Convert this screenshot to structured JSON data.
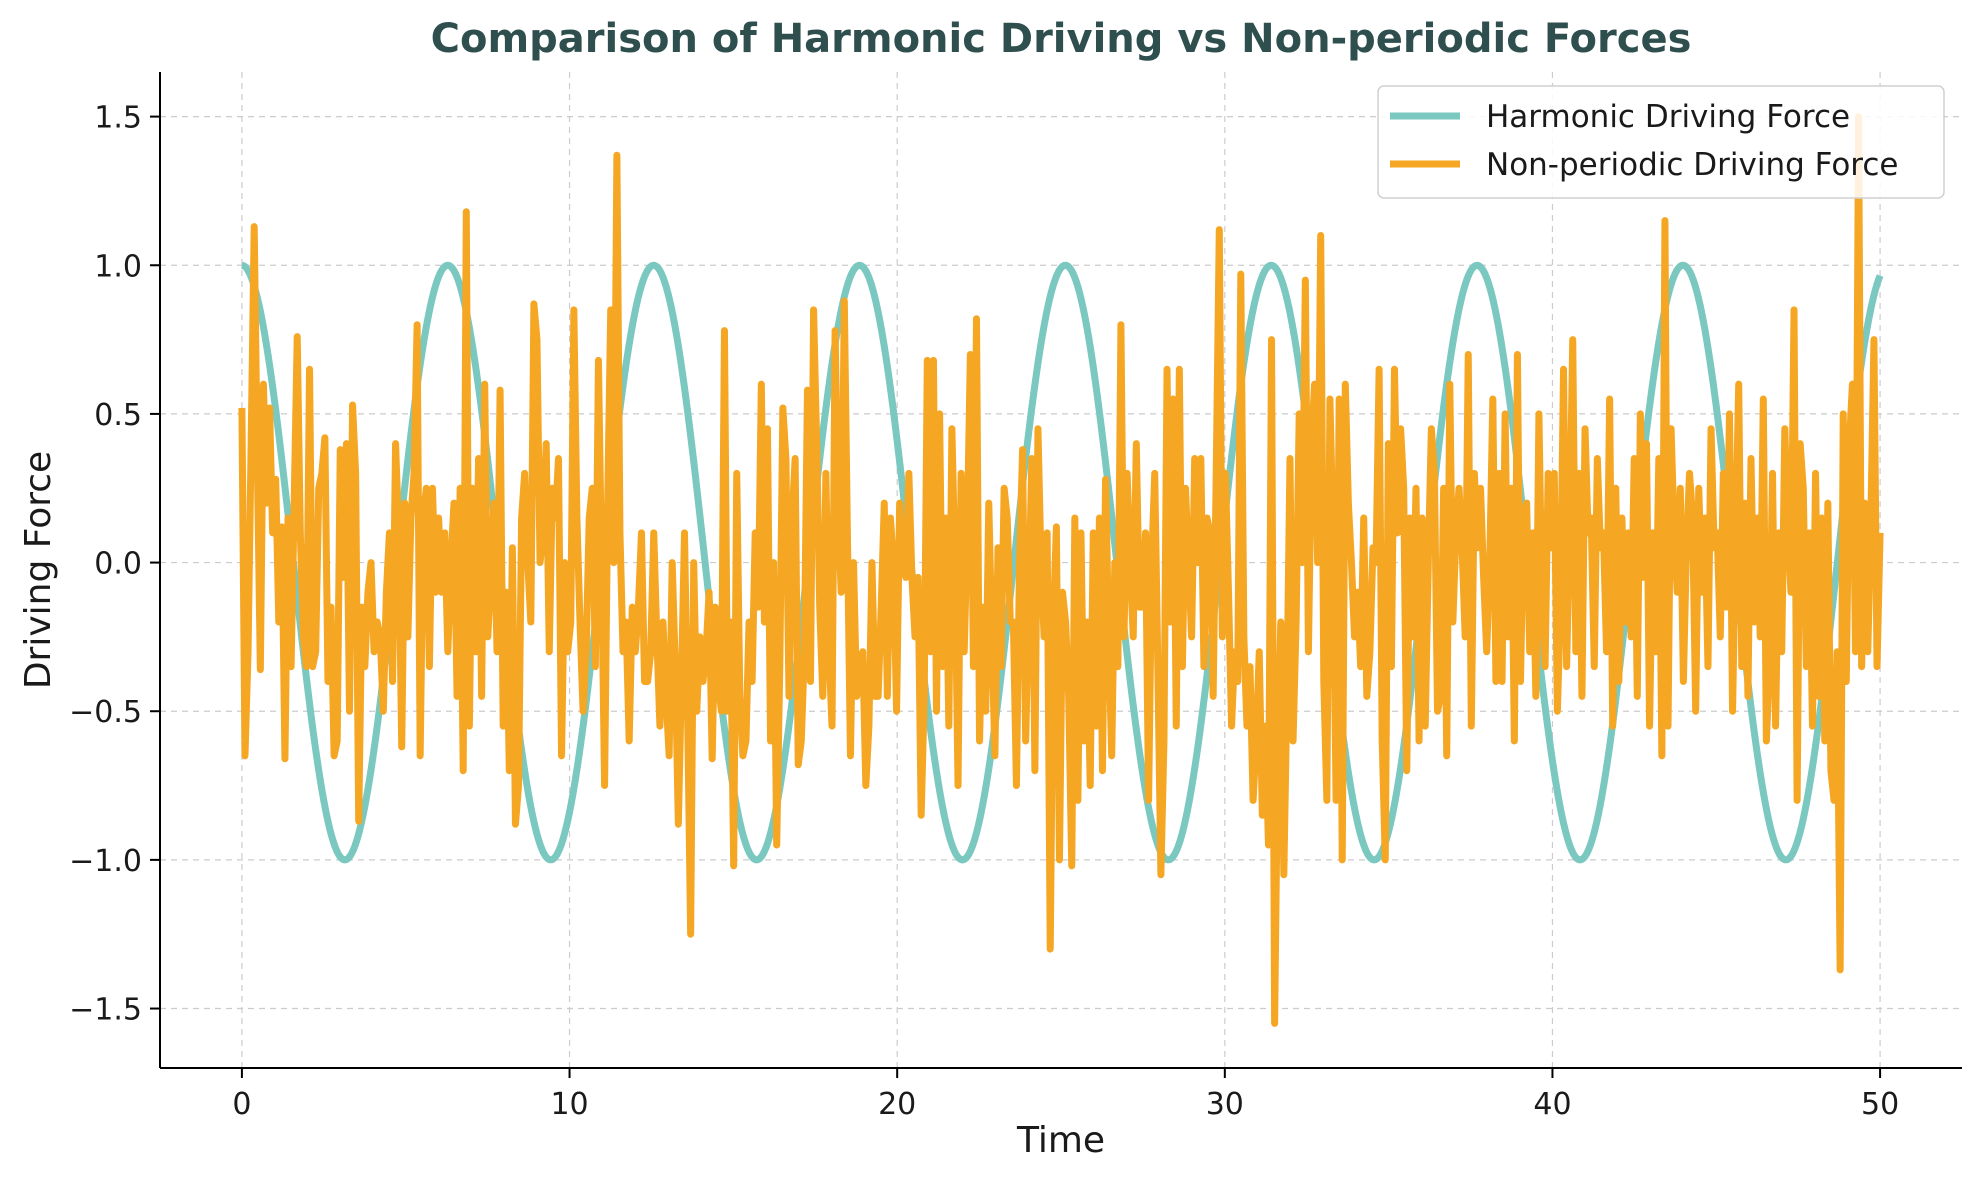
{
  "chart_data": {
    "type": "line",
    "title": "Comparison of Harmonic Driving vs Non-periodic Forces",
    "xlabel": "Time",
    "ylabel": "Driving Force",
    "xlim": [
      -2.5,
      52.5
    ],
    "ylim": [
      -1.7,
      1.65
    ],
    "xticks": [
      0,
      10,
      20,
      30,
      40,
      50
    ],
    "yticks": [
      -1.5,
      -1.0,
      -0.5,
      0.0,
      0.5,
      1.0,
      1.5
    ],
    "xtick_labels": [
      "0",
      "10",
      "20",
      "30",
      "40",
      "50"
    ],
    "ytick_labels": [
      "−1.5",
      "−1.0",
      "−0.5",
      "0.0",
      "0.5",
      "1.0",
      "1.5"
    ],
    "grid": true,
    "legend_position": "top-right",
    "series": [
      {
        "name": "Harmonic Driving Force",
        "color": "#7ac8bf",
        "formula": "cos(t)",
        "x_range": [
          0,
          50
        ]
      },
      {
        "name": "Non-periodic Driving Force",
        "color": "#f5a623",
        "x_range": [
          0,
          50
        ],
        "y": [
          0.52,
          -0.65,
          -0.3,
          0.4,
          1.13,
          0.35,
          -0.36,
          0.6,
          0.2,
          0.52,
          0.1,
          0.28,
          -0.2,
          0.12,
          -0.66,
          0.15,
          -0.35,
          0.2,
          0.76,
          0.1,
          -0.25,
          -0.35,
          0.65,
          -0.35,
          -0.3,
          0.25,
          0.3,
          0.42,
          -0.4,
          -0.15,
          -0.65,
          -0.6,
          0.38,
          -0.05,
          0.4,
          -0.5,
          0.53,
          0.3,
          -0.87,
          -0.15,
          -0.35,
          -0.1,
          0.0,
          -0.3,
          -0.2,
          -0.25,
          -0.5,
          -0.1,
          0.1,
          -0.4,
          0.4,
          0.1,
          -0.62,
          0.2,
          -0.25,
          0.15,
          0.3,
          0.8,
          -0.65,
          0.15,
          0.25,
          -0.35,
          0.25,
          -0.1,
          0.15,
          -0.1,
          0.1,
          -0.3,
          0.0,
          0.2,
          -0.45,
          0.25,
          -0.7,
          1.18,
          -0.55,
          0.25,
          -0.3,
          0.35,
          -0.45,
          0.6,
          -0.25,
          -0.05,
          0.2,
          -0.3,
          0.58,
          -0.55,
          -0.1,
          -0.7,
          0.05,
          -0.88,
          -0.75,
          0.15,
          0.3,
          0.0,
          -0.2,
          0.87,
          0.75,
          0.0,
          0.1,
          0.4,
          -0.3,
          0.25,
          0.15,
          0.35,
          -0.65,
          0.0,
          -0.3,
          -0.2,
          0.85,
          0.15,
          -0.2,
          -0.5,
          -0.3,
          0.15,
          0.25,
          -0.35,
          0.68,
          0.0,
          -0.75,
          0.2,
          0.85,
          0.0,
          1.37,
          0.1,
          -0.3,
          -0.2,
          -0.6,
          -0.15,
          -0.3,
          -0.15,
          0.1,
          -0.4,
          -0.4,
          -0.3,
          0.1,
          -0.25,
          -0.55,
          -0.2,
          -0.45,
          -0.65,
          0.0,
          -0.35,
          -0.88,
          -0.4,
          0.1,
          -0.5,
          -1.25,
          0.0,
          -0.5,
          -0.25,
          -0.4,
          -0.3,
          -0.1,
          -0.66,
          -0.15,
          -0.4,
          -0.5,
          0.78,
          -0.5,
          -0.2,
          -1.02,
          0.3,
          -0.45,
          -0.65,
          -0.6,
          -0.2,
          -0.4,
          0.1,
          -0.15,
          0.6,
          -0.2,
          0.45,
          -0.6,
          0.0,
          -0.95,
          -0.35,
          0.52,
          0.35,
          -0.45,
          0.15,
          0.35,
          -0.68,
          -0.6,
          -0.3,
          0.58,
          -0.4,
          0.85,
          0.4,
          -0.15,
          -0.45,
          0.3,
          -0.3,
          -0.55,
          0.78,
          0.15,
          -0.1,
          0.88,
          0.1,
          -0.65,
          0.0,
          -0.45,
          -0.35,
          -0.3,
          -0.75,
          -0.55,
          0.0,
          -0.45,
          -0.45,
          -0.15,
          0.2,
          -0.45,
          0.15,
          0.0,
          -0.5,
          0.2,
          0.0,
          -0.05,
          0.3,
          -0.05,
          -0.25,
          -0.05,
          -0.85,
          -0.45,
          0.68,
          -0.3,
          0.68,
          -0.5,
          0.5,
          -0.35,
          0.15,
          -0.55,
          0.45,
          0.0,
          -0.75,
          0.3,
          -0.3,
          0.1,
          0.7,
          -0.35,
          0.82,
          -0.6,
          -0.15,
          -0.5,
          0.2,
          -0.25,
          -0.65,
          0.05,
          -0.35,
          0.25,
          0.15,
          -0.2,
          -0.2,
          -0.75,
          0.0,
          0.38,
          -0.6,
          -0.15,
          0.35,
          -0.7,
          0.45,
          0.0,
          -0.25,
          0.1,
          -1.3,
          -0.2,
          0.12,
          -1.0,
          -0.1,
          -0.2,
          -0.45,
          -1.02,
          0.15,
          -0.8,
          0.1,
          -0.6,
          -0.2,
          -0.75,
          0.1,
          -0.55,
          0.15,
          -0.7,
          0.28,
          -0.25,
          -0.65,
          0.0,
          -0.35,
          0.8,
          -0.25,
          0.3,
          0.0,
          -0.25,
          0.4,
          -0.15,
          -0.15,
          0.1,
          -0.8,
          0.0,
          0.3,
          -0.35,
          -1.05,
          -0.6,
          0.65,
          -0.2,
          0.55,
          -0.55,
          0.65,
          -0.35,
          0.25,
          0.0,
          -0.25,
          0.35,
          0.0,
          0.35,
          -0.35,
          0.15,
          0.1,
          -0.45,
          0.3,
          1.12,
          -0.25,
          0.3,
          -0.1,
          -0.55,
          -0.3,
          -0.4,
          0.97,
          -0.25,
          -0.55,
          -0.35,
          -0.8,
          -0.6,
          -0.3,
          -0.85,
          -0.55,
          -0.95,
          0.75,
          -1.55,
          -0.65,
          -0.2,
          -1.05,
          -0.45,
          0.35,
          -0.6,
          -0.2,
          0.5,
          0.0,
          0.95,
          -0.3,
          0.4,
          0.6,
          0.0,
          1.1,
          -0.4,
          -0.8,
          0.55,
          0.1,
          -0.8,
          0.55,
          -1.0,
          0.6,
          0.2,
          0.0,
          -0.25,
          -0.1,
          -0.35,
          0.15,
          -0.45,
          -0.3,
          0.05,
          0.0,
          0.65,
          -0.6,
          -1.0,
          0.4,
          -0.35,
          0.65,
          0.1,
          0.45,
          0.25,
          -0.7,
          0.15,
          -0.25,
          0.25,
          -0.6,
          0.15,
          -0.55,
          0.0,
          0.45,
          0.3,
          -0.5,
          -0.45,
          0.25,
          -0.65,
          0.6,
          -0.2,
          0.1,
          0.25,
          0.05,
          -0.25,
          0.7,
          -0.55,
          0.3,
          0.05,
          0.25,
          -0.05,
          -0.3,
          0.0,
          0.55,
          -0.4,
          0.3,
          -0.4,
          0.5,
          -0.25,
          0.25,
          -0.6,
          0.7,
          -0.4,
          0.15,
          0.2,
          -0.3,
          0.1,
          -0.45,
          0.5,
          -0.15,
          -0.35,
          0.3,
          0.05,
          0.3,
          -0.5,
          -0.15,
          0.65,
          -0.35,
          0.1,
          0.75,
          -0.3,
          0.3,
          -0.45,
          0.45,
          0.1,
          0.15,
          -0.35,
          0.35,
          0.05,
          0.1,
          -0.3,
          0.55,
          -0.55,
          0.25,
          -0.4,
          0.15,
          -0.2,
          0.1,
          -0.25,
          0.35,
          -0.45,
          0.5,
          -0.05,
          0.4,
          -0.55,
          0.1,
          -0.3,
          0.35,
          -0.65,
          1.15,
          -0.55,
          0.45,
          0.1,
          -0.1,
          0.25,
          -0.4,
          0.05,
          0.3,
          0.15,
          -0.5,
          0.25,
          -0.1,
          0.15,
          -0.35,
          0.45,
          0.05,
          0.1,
          -0.25,
          0.3,
          -0.15,
          0.5,
          -0.5,
          0.1,
          0.6,
          -0.35,
          0.2,
          -0.45,
          0.35,
          -0.2,
          0.15,
          -0.25,
          0.55,
          -0.6,
          -0.35,
          0.3,
          -0.55,
          0.1,
          -0.3,
          0.45,
          0.1,
          -0.1,
          0.85,
          -0.8,
          0.4,
          0.25,
          -0.35,
          0.1,
          -0.55,
          0.3,
          -0.45,
          0.15,
          -0.6,
          0.2,
          -0.7,
          -0.8,
          -0.3,
          -1.37,
          0.5,
          -0.4,
          0.4,
          0.6,
          -0.3,
          1.5,
          -0.35,
          0.2,
          -0.3,
          0.15,
          0.75,
          -0.35,
          0.1
        ]
      }
    ]
  }
}
